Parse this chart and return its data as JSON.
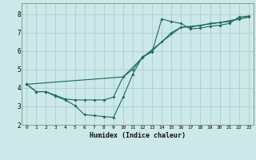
{
  "xlabel": "Humidex (Indice chaleur)",
  "background_color": "#cce8e8",
  "grid_color": "#aacece",
  "line_color": "#1a6b5a",
  "xlim": [
    -0.5,
    23.5
  ],
  "ylim": [
    2.0,
    8.6
  ],
  "xticks": [
    0,
    1,
    2,
    3,
    4,
    5,
    6,
    7,
    8,
    9,
    10,
    11,
    12,
    13,
    14,
    15,
    16,
    17,
    18,
    19,
    20,
    21,
    22,
    23
  ],
  "yticks": [
    2,
    3,
    4,
    5,
    6,
    7,
    8
  ],
  "series1_x": [
    0,
    1,
    2,
    3,
    4,
    5,
    6,
    7,
    8,
    9,
    10,
    11,
    12,
    13,
    14,
    15,
    16,
    17,
    18,
    19,
    20,
    21,
    22,
    23
  ],
  "series1_y": [
    4.2,
    3.8,
    3.8,
    3.55,
    3.35,
    3.05,
    2.55,
    2.5,
    2.45,
    2.4,
    3.5,
    4.75,
    5.7,
    5.95,
    7.75,
    7.6,
    7.5,
    7.2,
    7.25,
    7.35,
    7.4,
    7.5,
    7.85,
    7.9
  ],
  "series2_x": [
    0,
    1,
    2,
    3,
    4,
    5,
    6,
    7,
    8,
    9,
    10,
    11,
    12,
    13,
    14,
    15,
    16,
    17,
    18,
    19,
    20,
    21,
    22,
    23
  ],
  "series2_y": [
    4.2,
    3.8,
    3.8,
    3.6,
    3.4,
    3.35,
    3.35,
    3.35,
    3.35,
    3.5,
    4.6,
    5.0,
    5.65,
    6.0,
    6.5,
    7.0,
    7.3,
    7.3,
    7.4,
    7.5,
    7.55,
    7.6,
    7.75,
    7.85
  ],
  "series3_x": [
    0,
    10,
    12,
    14,
    16,
    18,
    20,
    22,
    23
  ],
  "series3_y": [
    4.2,
    4.6,
    5.65,
    6.5,
    7.3,
    7.4,
    7.55,
    7.75,
    7.85
  ]
}
